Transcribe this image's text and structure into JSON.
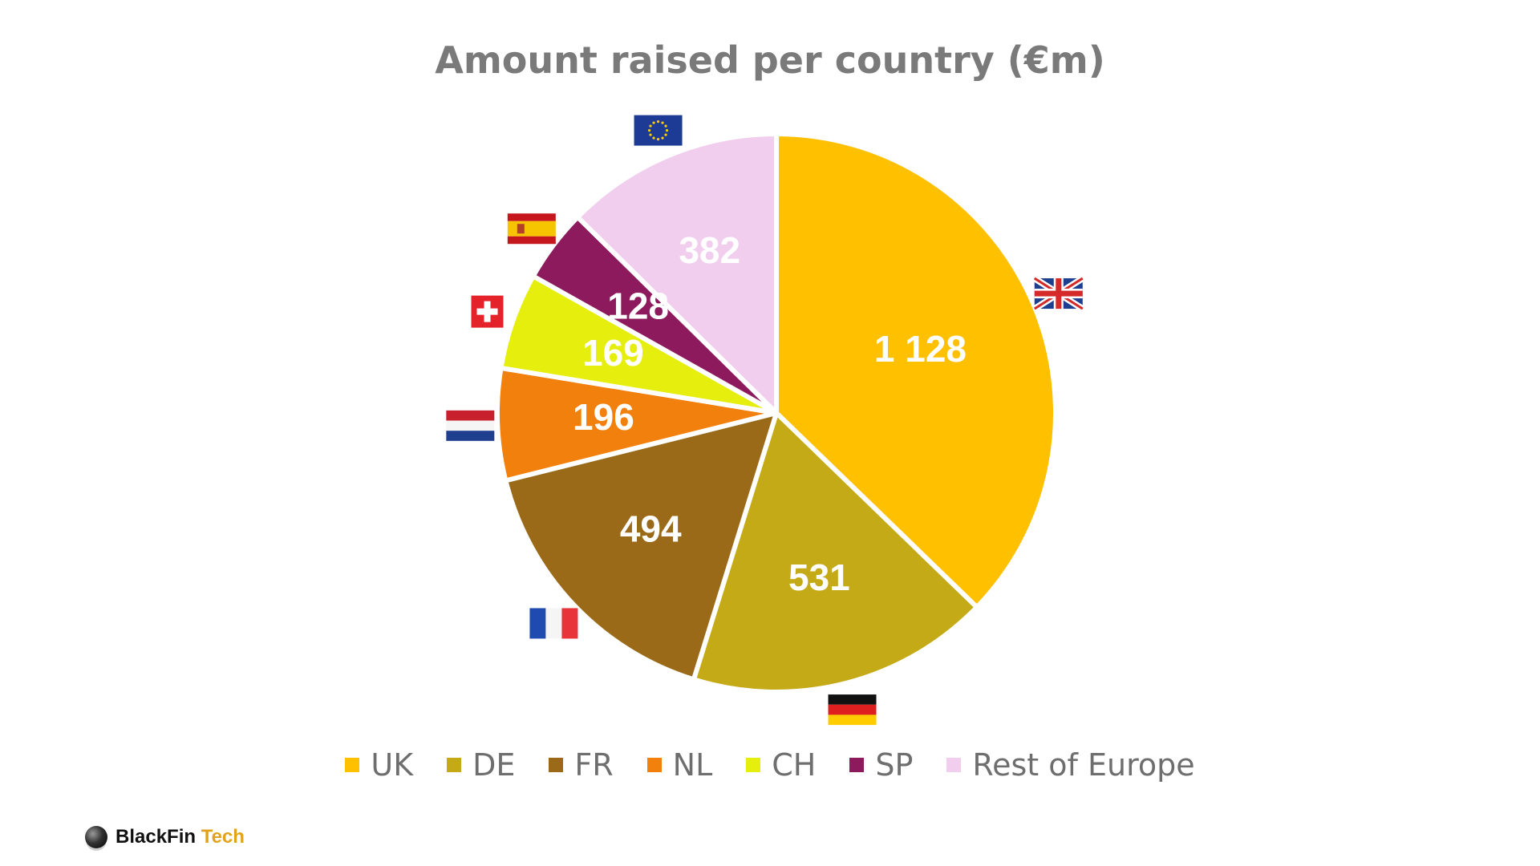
{
  "chart_data": {
    "type": "pie",
    "title": "Amount raised per country (€m)",
    "legend_position": "bottom",
    "slices": [
      {
        "name": "UK",
        "value": 1128,
        "label": "1 128",
        "color": "#FFC000",
        "flag": "gb-flag-icon"
      },
      {
        "name": "DE",
        "value": 531,
        "label": "531",
        "color": "#C5AA17",
        "flag": "de-flag-icon"
      },
      {
        "name": "FR",
        "value": 494,
        "label": "494",
        "color": "#9B6A19",
        "flag": "fr-flag-icon"
      },
      {
        "name": "NL",
        "value": 196,
        "label": "196",
        "color": "#F2800D",
        "flag": "nl-flag-icon"
      },
      {
        "name": "CH",
        "value": 169,
        "label": "169",
        "color": "#E5EE0D",
        "flag": "ch-flag-icon"
      },
      {
        "name": "SP",
        "value": 128,
        "label": "128",
        "color": "#8E1A5E",
        "flag": "es-flag-icon"
      },
      {
        "name": "Rest of Europe",
        "value": 382,
        "label": "382",
        "color": "#F1CDEE",
        "flag": "eu-flag-icon"
      }
    ]
  },
  "brand": {
    "name": "BlackFin",
    "suffix": "Tech"
  }
}
